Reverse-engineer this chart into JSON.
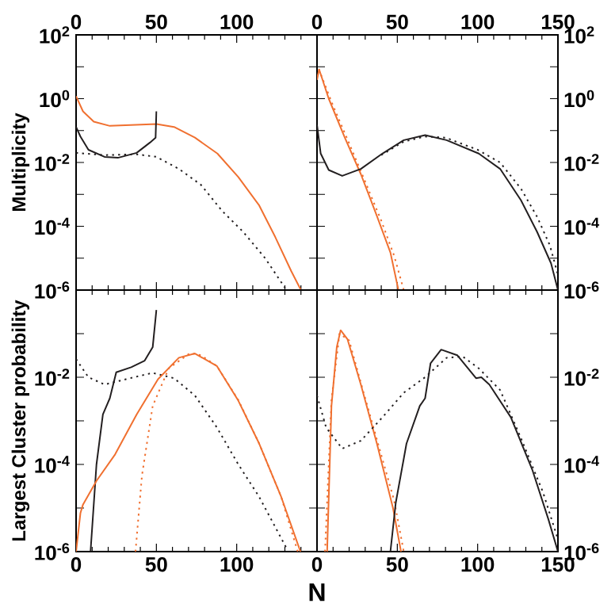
{
  "chart_data": [
    {
      "type": "line",
      "log": true,
      "ylabel": "Multiplicity",
      "xlim": [
        0,
        150
      ],
      "xticks": [
        0,
        50,
        100,
        {
          "value": 150,
          "label": null
        }
      ],
      "ylim": [
        1e-06,
        100
      ],
      "yticks": [
        {
          "value": 100,
          "label": "10$^{2}$"
        },
        {
          "value": 10,
          "label": null
        },
        {
          "value": 1,
          "label": "10$^{0}$"
        },
        {
          "value": 0.1,
          "label": null
        },
        {
          "value": 0.01,
          "label": "10$^{-2}$"
        },
        {
          "value": 0.001,
          "label": null
        },
        {
          "value": 0.0001,
          "label": "10$^{-4}$"
        },
        {
          "value": 1e-05,
          "label": null
        },
        {
          "value": 1e-06,
          "label": "10$^{-6}$"
        }
      ],
      "series": [
        {
          "color": "#f07030",
          "line_style": "solid",
          "x": [
            0,
            4.3,
            11,
            21,
            34,
            50,
            61,
            74,
            88,
            101,
            114,
            124,
            134,
            140
          ],
          "values": [
            1.2,
            0.4,
            0.19,
            0.14,
            0.15,
            0.16,
            0.13,
            0.06,
            0.019,
            0.0035,
            0.00045,
            4.6e-05,
            3.9e-06,
            1e-06
          ]
        },
        {
          "color": "#231f20",
          "line_style": "solid",
          "x": [
            0,
            2.7,
            7.7,
            17.7,
            26,
            37.7,
            46,
            49.5,
            50
          ],
          "values": [
            0.13,
            0.065,
            0.025,
            0.015,
            0.014,
            0.02,
            0.042,
            0.06,
            0.4
          ]
        },
        {
          "color": "#231f20",
          "line_style": "dotted",
          "x": [
            0,
            17.7,
            37.7,
            50,
            64,
            77.7,
            91,
            104,
            117.7,
            131
          ],
          "values": [
            0.02,
            0.017,
            0.018,
            0.015,
            0.0063,
            0.002,
            0.0003,
            6.7e-05,
            1e-05,
            1e-06
          ]
        }
      ]
    },
    {
      "type": "line",
      "log": true,
      "xlim": [
        0,
        150
      ],
      "xticks": [
        0,
        50,
        100,
        150
      ],
      "ylim": [
        1e-06,
        100
      ],
      "yticks": [
        {
          "value": 100,
          "label": "10$^{2}$"
        },
        {
          "value": 10,
          "label": null
        },
        {
          "value": 1,
          "label": "10$^{0}$"
        },
        {
          "value": 0.1,
          "label": null
        },
        {
          "value": 0.01,
          "label": "10$^{-2}$"
        },
        {
          "value": 0.001,
          "label": null
        },
        {
          "value": 0.0001,
          "label": "10$^{-4}$"
        },
        {
          "value": 1e-05,
          "label": null
        },
        {
          "value": 1e-06,
          "label": "10$^{-6}$"
        }
      ],
      "series": [
        {
          "color": "#f07030",
          "line_style": "dotted",
          "x": [
            0,
            1.3,
            10,
            20,
            30,
            40,
            48,
            54
          ],
          "values": [
            5,
            8,
            0.6,
            0.04,
            0.0025,
            0.00015,
            1.2e-05,
            1e-06
          ]
        },
        {
          "color": "#f07030",
          "line_style": "solid",
          "x": [
            0,
            1.3,
            7.3,
            17.3,
            27.3,
            37.3,
            45.7,
            50.7
          ],
          "values": [
            3.9,
            8.3,
            1,
            0.06,
            0.0043,
            0.00021,
            1.5e-05,
            1e-06
          ]
        },
        {
          "color": "#231f20",
          "line_style": "solid",
          "x": [
            0,
            2.3,
            7.3,
            15.7,
            27.3,
            40.7,
            54,
            67.3,
            80.7,
            100.7,
            114,
            127,
            137,
            145.7,
            150
          ],
          "values": [
            0.15,
            0.019,
            0.0058,
            0.0038,
            0.0063,
            0.019,
            0.05,
            0.072,
            0.05,
            0.019,
            0.0063,
            0.00065,
            6.7e-05,
            6.9e-06,
            1e-06
          ]
        },
        {
          "color": "#231f20",
          "line_style": "dotted",
          "x": [
            40,
            54,
            67,
            80,
            100,
            114,
            127,
            137,
            145,
            150
          ],
          "values": [
            0.017,
            0.045,
            0.065,
            0.06,
            0.025,
            0.01,
            0.0015,
            0.0002,
            2.5e-05,
            3e-06
          ]
        }
      ]
    },
    {
      "type": "line",
      "log": true,
      "ylabel": "Largest Cluster probability",
      "xlim": [
        0,
        150
      ],
      "xticks": [
        0,
        50,
        100,
        {
          "value": 150,
          "label": null
        }
      ],
      "ylim": [
        1e-06,
        1
      ],
      "yticks": [
        {
          "value": 1,
          "label": null
        },
        {
          "value": 0.1,
          "label": null
        },
        {
          "value": 0.01,
          "label": "10$^{-2}$"
        },
        {
          "value": 0.001,
          "label": null
        },
        {
          "value": 0.0001,
          "label": "10$^{-4}$"
        },
        {
          "value": 1e-05,
          "label": null
        },
        {
          "value": 1e-06,
          "label": "10$^{-6}$"
        }
      ],
      "series": [
        {
          "color": "#231f20",
          "line_style": "solid",
          "x": [
            9,
            12.7,
            16.7,
            21,
            25,
            34.3,
            42.7,
            47.7,
            50
          ],
          "values": [
            1e-06,
            0.0001,
            0.0014,
            0.0033,
            0.013,
            0.017,
            0.024,
            0.049,
            0.35
          ]
        },
        {
          "color": "#231f20",
          "line_style": "dotted",
          "x": [
            0,
            7.7,
            17.7,
            31,
            47.7,
            61,
            74,
            87.7,
            101,
            114,
            131
          ],
          "values": [
            0.026,
            0.01,
            0.0068,
            0.009,
            0.0126,
            0.0095,
            0.0038,
            0.0007,
            0.0001,
            1.8e-05,
            1.2e-06
          ]
        },
        {
          "color": "#f07030",
          "line_style": "solid",
          "x": [
            0,
            2.7,
            4.3,
            12.7,
            24.3,
            37.7,
            51,
            64,
            74,
            87.7,
            101,
            114,
            127.7,
            139.7
          ],
          "values": [
            1e-06,
            7.6e-06,
            1.2e-05,
            4.2e-05,
            0.00017,
            0.0014,
            0.009,
            0.028,
            0.035,
            0.018,
            0.0029,
            0.0003,
            1.8e-05,
            1e-06
          ]
        },
        {
          "color": "#f07030",
          "line_style": "dotted",
          "x": [
            37,
            41,
            47.7,
            57.7,
            71,
            77.7,
            87.7,
            101,
            114,
            127.7,
            138
          ],
          "values": [
            1e-06,
            5.5e-05,
            0.0022,
            0.016,
            0.036,
            0.032,
            0.018,
            0.003,
            0.0003,
            1.8e-05,
            1e-06
          ]
        }
      ]
    },
    {
      "type": "line",
      "log": true,
      "xlabel": "N",
      "xlim": [
        0,
        150
      ],
      "xticks": [
        0,
        50,
        100,
        150
      ],
      "ylim": [
        1e-06,
        1
      ],
      "yticks": [
        {
          "value": 1,
          "label": null
        },
        {
          "value": 0.1,
          "label": null
        },
        {
          "value": 0.01,
          "label": "10$^{-2}$"
        },
        {
          "value": 0.001,
          "label": null
        },
        {
          "value": 0.0001,
          "label": "10$^{-4}$"
        },
        {
          "value": 1e-05,
          "label": null
        },
        {
          "value": 1e-06,
          "label": "10$^{-6}$"
        }
      ],
      "series": [
        {
          "color": "#f07030",
          "line_style": "dotted",
          "x": [
            5,
            9,
            14,
            20,
            28,
            38,
            48,
            54
          ],
          "values": [
            1e-06,
            0.003,
            0.1,
            0.07,
            0.006,
            0.0003,
            1.5e-05,
            1e-06
          ]
        },
        {
          "color": "#f07030",
          "line_style": "solid",
          "x": [
            6.3,
            9,
            12.3,
            14.7,
            19,
            27.3,
            37.3,
            47.3,
            52.3
          ],
          "values": [
            1e-06,
            0.0022,
            0.049,
            0.12,
            0.074,
            0.0068,
            0.0003,
            1e-05,
            1e-06
          ]
        },
        {
          "color": "#231f20",
          "line_style": "dotted",
          "x": [
            0,
            5.7,
            15.7,
            27.3,
            40.7,
            54,
            67.3,
            80.7,
            90.7,
            100.7,
            114,
            127,
            140.7,
            150
          ],
          "values": [
            0.0038,
            0.0007,
            0.00023,
            0.00035,
            0.0012,
            0.0044,
            0.01,
            0.028,
            0.03,
            0.016,
            0.0051,
            0.0004,
            2.3e-05,
            1.9e-06
          ]
        },
        {
          "color": "#231f20",
          "line_style": "solid",
          "x": [
            45.7,
            49,
            55.7,
            64,
            67.3,
            70.7,
            77.3,
            87.3,
            99,
            102.3,
            107.3,
            120.7,
            134,
            144,
            150
          ],
          "values": [
            1e-06,
            1.3e-05,
            0.0003,
            0.0022,
            0.0033,
            0.021,
            0.043,
            0.032,
            0.0095,
            0.01,
            0.0068,
            0.0012,
            7.6e-05,
            5.6e-06,
            1e-06
          ]
        }
      ]
    }
  ]
}
